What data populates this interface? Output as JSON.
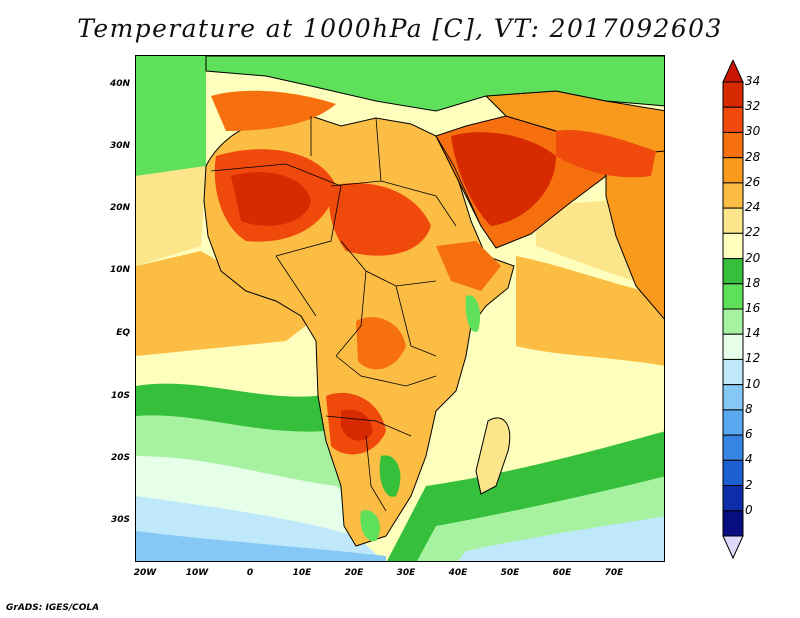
{
  "title": "Temperature at 1000hPa [C], VT: 2017092603",
  "credit": "GrADS: IGES/COLA",
  "y_axis_labels": [
    "40N",
    "30N",
    "20N",
    "10N",
    "EQ",
    "10S",
    "20S",
    "30S"
  ],
  "x_axis_labels": [
    "20W",
    "10W",
    "0",
    "10E",
    "20E",
    "30E",
    "40E",
    "50E",
    "60E",
    "70E"
  ],
  "colorbar": {
    "labels": [
      "34",
      "32",
      "30",
      "28",
      "26",
      "24",
      "22",
      "20",
      "18",
      "16",
      "14",
      "12",
      "10",
      "8",
      "6",
      "4",
      "2",
      "0"
    ],
    "colors": [
      "#d72a00",
      "#ef4a0c",
      "#f7700f",
      "#f99a1c",
      "#fbbd44",
      "#fde58c",
      "#ffffbd",
      "#35bf3b",
      "#5fe05a",
      "#a7f2a0",
      "#e6ffe8",
      "#bfe8fb",
      "#86c8f5",
      "#5aa8ef",
      "#3684e3",
      "#1b5fd0",
      "#0d2ea8",
      "#080e80"
    ],
    "top_arrow_color": "#c81400",
    "bottom_arrow_color": "#e0d9fb"
  },
  "field_colors": {
    "sea_cool": "#bfe8fb",
    "sea_cold": "#86c8f5",
    "sea_pale": "#e6ffe8",
    "green_dark": "#35bf3b",
    "green_light": "#5fe05a",
    "green_pale": "#a7f2a0",
    "yellow_pale": "#ffffbd",
    "yellow": "#fde58c",
    "orange_light": "#fbbd44",
    "orange": "#f99a1c",
    "orange_dark": "#f7700f",
    "red": "#ef4a0c",
    "red_dark": "#d72a00",
    "border": "#000000"
  }
}
